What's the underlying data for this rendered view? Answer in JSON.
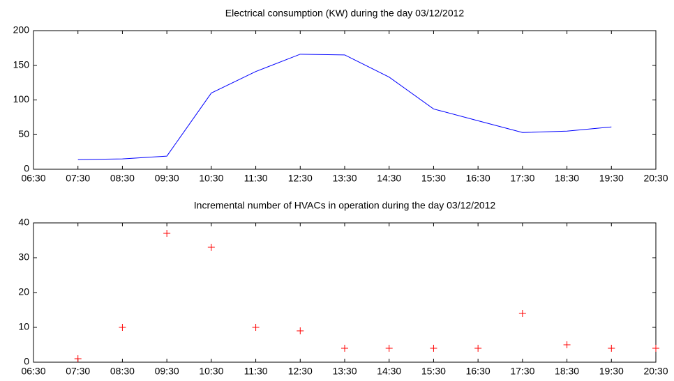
{
  "chart_data": [
    {
      "type": "line",
      "title": "Electrical consumption (KW) during the day 03/12/2012",
      "categories": [
        "06:30",
        "07:30",
        "08:30",
        "09:30",
        "10:30",
        "11:30",
        "12:30",
        "13:30",
        "14:30",
        "15:30",
        "16:30",
        "17:30",
        "18:30",
        "19:30",
        "20:30"
      ],
      "series": [
        {
          "color": "#0000ff",
          "values": [
            null,
            14,
            15,
            19,
            110,
            141,
            166,
            165,
            133,
            87,
            70,
            53,
            55,
            61,
            null
          ]
        }
      ],
      "ylim": [
        0,
        200
      ],
      "yticks": [
        0,
        50,
        100,
        150,
        200
      ]
    },
    {
      "type": "scatter",
      "title": "Incremental number of HVACs in operation during the day 03/12/2012",
      "categories": [
        "06:30",
        "07:30",
        "08:30",
        "09:30",
        "10:30",
        "11:30",
        "12:30",
        "13:30",
        "14:30",
        "15:30",
        "16:30",
        "17:30",
        "18:30",
        "19:30",
        "20:30"
      ],
      "series": [
        {
          "color": "#ff0000",
          "marker": "+",
          "values": [
            null,
            1,
            10,
            37,
            33,
            10,
            9,
            4,
            4,
            4,
            4,
            14,
            5,
            4,
            4
          ]
        }
      ],
      "ylim": [
        0,
        40
      ],
      "yticks": [
        0,
        10,
        20,
        30,
        40
      ]
    }
  ]
}
